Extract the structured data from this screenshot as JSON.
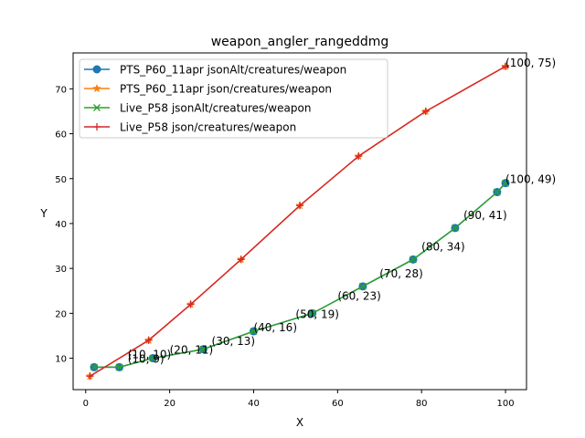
{
  "chart_data": {
    "type": "line",
    "title": "weapon_angler_rangeddmg",
    "xlabel": "X",
    "ylabel": "Y",
    "xlim": [
      -3,
      105
    ],
    "ylim": [
      3,
      78
    ],
    "xticks": [
      0,
      20,
      40,
      60,
      80,
      100
    ],
    "yticks": [
      10,
      20,
      30,
      40,
      50,
      60,
      70
    ],
    "grid": false,
    "legend_position": "top-left",
    "series": [
      {
        "name": "PTS_P60_11apr jsonAlt/creatures/weapon",
        "color": "#1f77b4",
        "marker": "circle",
        "x": [
          2,
          8,
          16,
          28,
          40,
          54,
          66,
          78,
          88,
          98,
          100
        ],
        "y": [
          8,
          8,
          10,
          12,
          16,
          20,
          26,
          32,
          39,
          47,
          49
        ]
      },
      {
        "name": "PTS_P60_11apr json/creatures/weapon",
        "color": "#ff7f0e",
        "marker": "star",
        "x": [
          1,
          15,
          25,
          37,
          51,
          65,
          81,
          100
        ],
        "y": [
          6,
          14,
          22,
          32,
          44,
          55,
          65,
          75
        ]
      },
      {
        "name": "Live_P58 jsonAlt/creatures/weapon",
        "color": "#2ca02c",
        "marker": "x",
        "x": [
          2,
          8,
          16,
          28,
          40,
          54,
          66,
          78,
          88,
          98,
          100
        ],
        "y": [
          8,
          8,
          10,
          12,
          16,
          20,
          26,
          32,
          39,
          47,
          49
        ]
      },
      {
        "name": "Live_P58 json/creatures/weapon",
        "color": "#d62728",
        "marker": "plus",
        "x": [
          1,
          15,
          25,
          37,
          51,
          65,
          81,
          100
        ],
        "y": [
          6,
          14,
          22,
          32,
          44,
          55,
          65,
          75
        ]
      }
    ],
    "annotations": [
      {
        "text": "(10, 9)",
        "x": 10,
        "y": 9
      },
      {
        "text": "(10, 10)",
        "x": 10,
        "y": 10
      },
      {
        "text": "(20, 11)",
        "x": 20,
        "y": 11
      },
      {
        "text": "(30, 13)",
        "x": 30,
        "y": 13
      },
      {
        "text": "(40, 16)",
        "x": 40,
        "y": 16
      },
      {
        "text": "(50, 19)",
        "x": 50,
        "y": 19
      },
      {
        "text": "(60, 23)",
        "x": 60,
        "y": 23
      },
      {
        "text": "(70, 28)",
        "x": 70,
        "y": 28
      },
      {
        "text": "(80, 34)",
        "x": 80,
        "y": 34
      },
      {
        "text": "(90, 41)",
        "x": 90,
        "y": 41
      },
      {
        "text": "(100, 49)",
        "x": 100,
        "y": 49
      },
      {
        "text": "(100, 75)",
        "x": 100,
        "y": 75
      }
    ]
  }
}
